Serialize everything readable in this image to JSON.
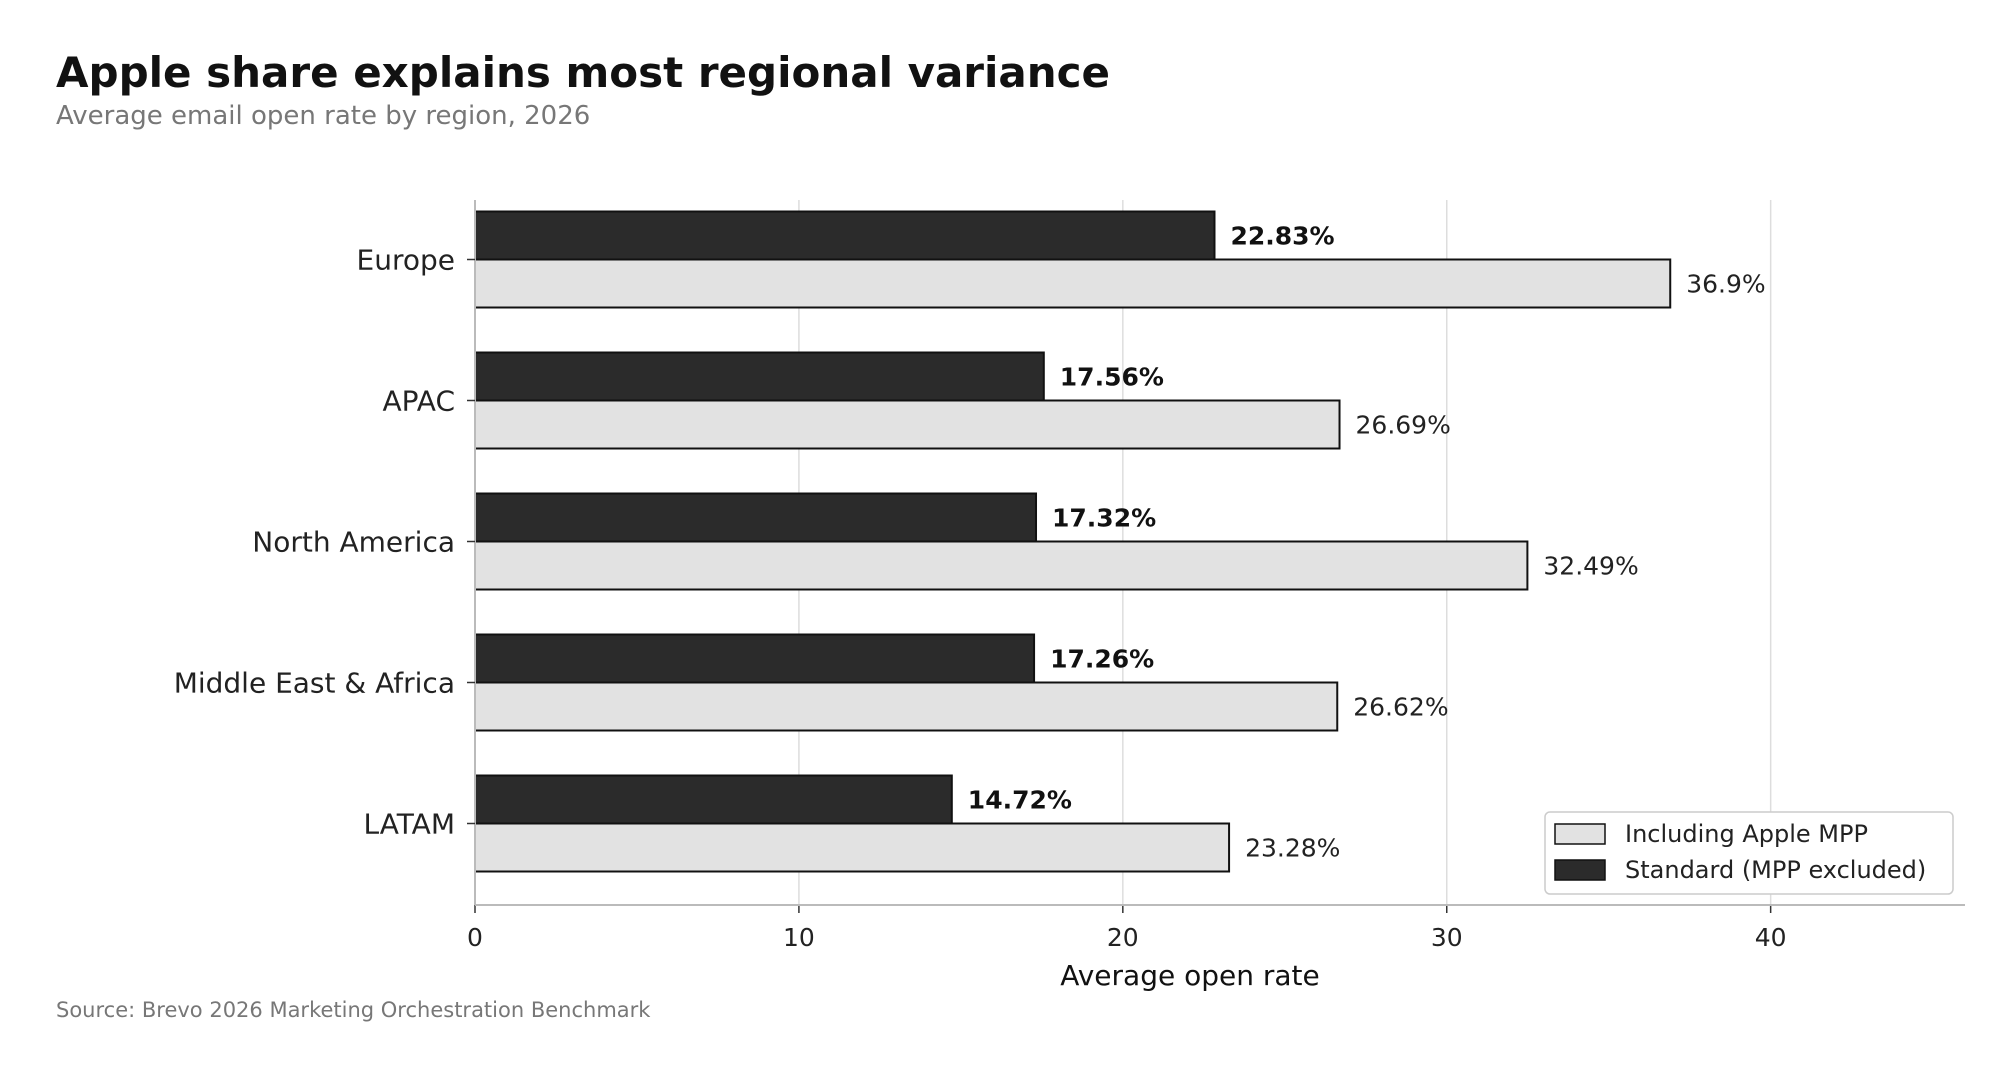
{
  "title": "Apple share explains most regional variance",
  "subtitle": "Average email open rate by region, 2026",
  "source": "Source: Brevo 2026 Marketing Orchestration Benchmark",
  "chart_data": {
    "type": "bar",
    "orientation": "horizontal",
    "categories": [
      "Europe",
      "APAC",
      "North America",
      "Middle East & Africa",
      "LATAM"
    ],
    "series": [
      {
        "name": "Standard (MPP excluded)",
        "values": [
          22.83,
          17.56,
          17.32,
          17.26,
          14.72
        ],
        "labels": [
          "22.83%",
          "17.56%",
          "17.32%",
          "17.26%",
          "14.72%"
        ],
        "color": "#2b2b2b"
      },
      {
        "name": "Including Apple MPP",
        "values": [
          36.9,
          26.69,
          32.49,
          26.62,
          23.28
        ],
        "labels": [
          "36.9%",
          "26.69%",
          "32.49%",
          "26.62%",
          "23.28%"
        ],
        "color": "#e2e2e2"
      }
    ],
    "legend_order": [
      "Including Apple MPP",
      "Standard (MPP excluded)"
    ],
    "xlabel": "Average open rate",
    "ylabel": "",
    "xlim": [
      0,
      46
    ],
    "xticks": [
      0,
      10,
      20,
      30,
      40
    ],
    "grid": "vertical",
    "legend_position": "bottom-right"
  }
}
